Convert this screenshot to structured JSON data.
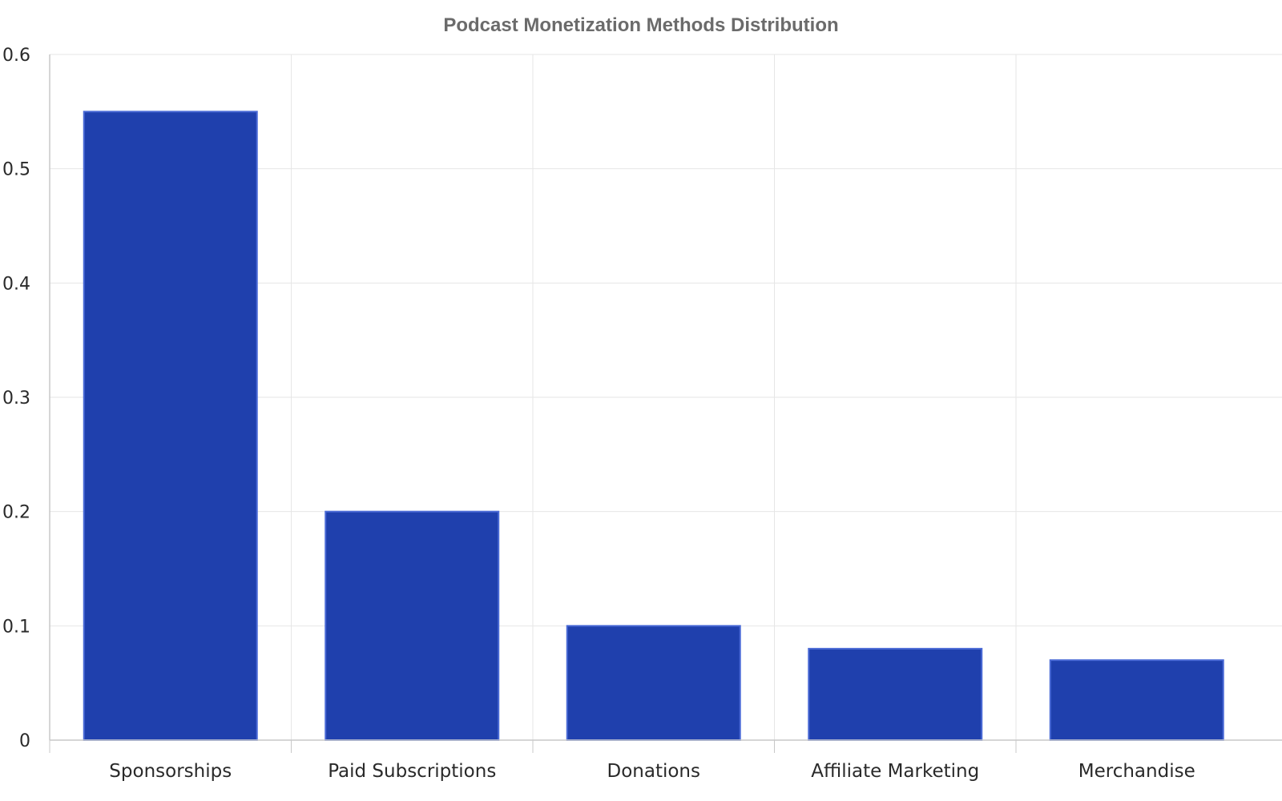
{
  "chart_data": {
    "type": "bar",
    "title": "Podcast Monetization Methods Distribution",
    "xlabel": "",
    "ylabel": "",
    "categories": [
      "Sponsorships",
      "Paid Subscriptions",
      "Donations",
      "Affiliate Marketing",
      "Merchandise"
    ],
    "values": [
      0.55,
      0.2,
      0.1,
      0.08,
      0.07
    ],
    "ylim": [
      0,
      0.6
    ],
    "yticks": [
      "0",
      "0.1",
      "0.2",
      "0.3",
      "0.4",
      "0.5",
      "0.6"
    ],
    "grid": true,
    "legend": "none",
    "colors": {
      "bar_fill": "#1f40ad",
      "bar_edge": "#4a6ad6",
      "grid": "#e6e6e6",
      "axis": "#c8c8c8"
    }
  }
}
